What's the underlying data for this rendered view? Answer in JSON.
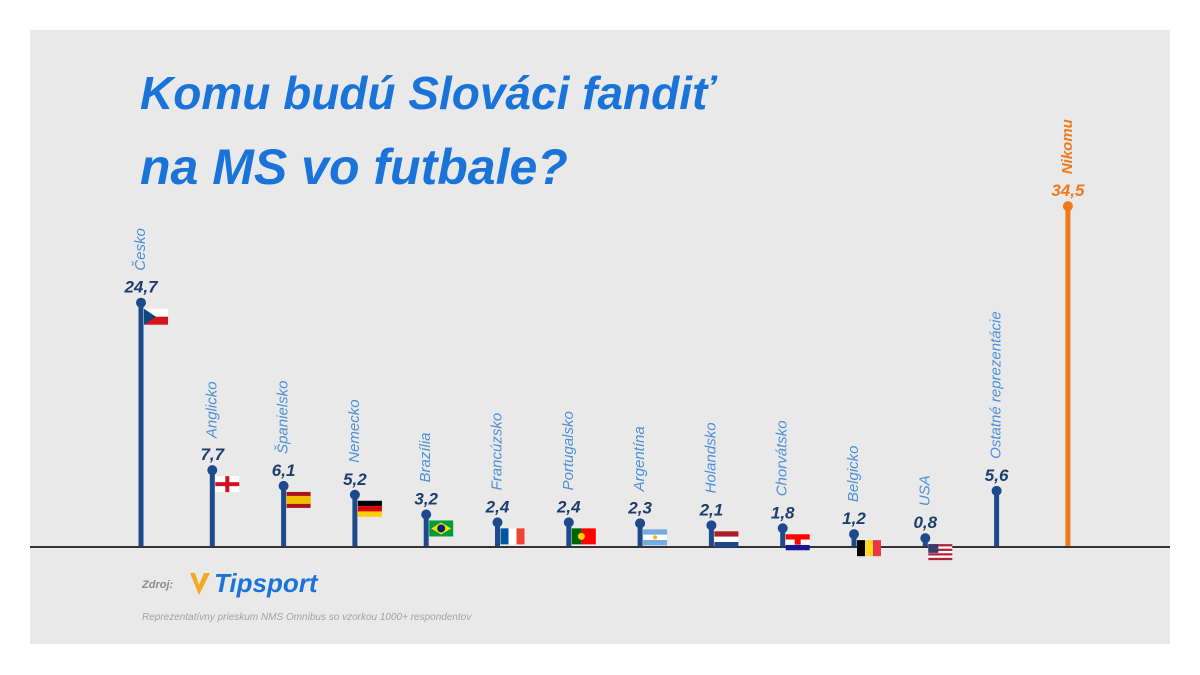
{
  "title_line1": "Komu budú Slováci fandiť",
  "title_line2": "na MS vo futbale?",
  "source": {
    "label": "Zdroj:",
    "brand": "Tipsport",
    "note": "Reprezentatívny prieskum NMS Omnibus so vzorkou 1000+ respondentov"
  },
  "colors": {
    "title": "#1a73d8",
    "bar": "#1c4a8c",
    "highlight": "#f07a1a",
    "label": "#4a8fd8",
    "value": "#1c3d6e",
    "baseline": "#333333"
  },
  "chart_data": {
    "type": "bar",
    "value_format": "decimal-comma",
    "categories": [
      "Česko",
      "Anglicko",
      "Španielsko",
      "Nemecko",
      "Brazília",
      "Francúzsko",
      "Portugalsko",
      "Argentína",
      "Holandsko",
      "Chorvátsko",
      "Belgicko",
      "USA",
      "Ostatné reprezentácie",
      "Nikomu"
    ],
    "values": [
      24.7,
      7.7,
      6.1,
      5.2,
      3.2,
      2.4,
      2.4,
      2.3,
      2.1,
      1.8,
      1.2,
      0.8,
      5.6,
      34.5
    ],
    "flags": [
      "czech-flag",
      "england-flag",
      "spain-flag",
      "germany-flag",
      "brazil-flag",
      "france-flag",
      "portugal-flag",
      "argentina-flag",
      "netherlands-flag",
      "croatia-flag",
      "belgium-flag",
      "usa-flag",
      "",
      ""
    ],
    "highlight_category": "Nikomu",
    "ylim": [
      0,
      35
    ]
  }
}
